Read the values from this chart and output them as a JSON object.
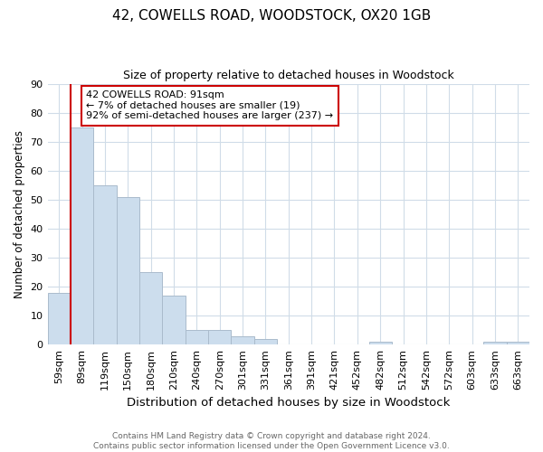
{
  "title": "42, COWELLS ROAD, WOODSTOCK, OX20 1GB",
  "subtitle": "Size of property relative to detached houses in Woodstock",
  "xlabel": "Distribution of detached houses by size in Woodstock",
  "ylabel": "Number of detached properties",
  "footer_line1": "Contains HM Land Registry data © Crown copyright and database right 2024.",
  "footer_line2": "Contains public sector information licensed under the Open Government Licence v3.0.",
  "categories": [
    "59sqm",
    "89sqm",
    "119sqm",
    "150sqm",
    "180sqm",
    "210sqm",
    "240sqm",
    "270sqm",
    "301sqm",
    "331sqm",
    "361sqm",
    "391sqm",
    "421sqm",
    "452sqm",
    "482sqm",
    "512sqm",
    "542sqm",
    "572sqm",
    "603sqm",
    "633sqm",
    "663sqm"
  ],
  "values": [
    18,
    75,
    55,
    51,
    25,
    17,
    5,
    5,
    3,
    2,
    0,
    0,
    0,
    0,
    1,
    0,
    0,
    0,
    0,
    1,
    1
  ],
  "bar_color": "#ccdded",
  "bar_edge_color": "#aabbcc",
  "property_line_x": 1,
  "property_line_color": "#cc0000",
  "annotation_text_line1": "42 COWELLS ROAD: 91sqm",
  "annotation_text_line2": "← 7% of detached houses are smaller (19)",
  "annotation_text_line3": "92% of semi-detached houses are larger (237) →",
  "annotation_box_color": "#ffffff",
  "annotation_box_edge": "#cc0000",
  "ylim": [
    0,
    90
  ],
  "yticks": [
    0,
    10,
    20,
    30,
    40,
    50,
    60,
    70,
    80,
    90
  ],
  "background_color": "#ffffff",
  "grid_color": "#d0dce8",
  "title_fontsize": 11,
  "subtitle_fontsize": 9,
  "ylabel_fontsize": 8.5,
  "xlabel_fontsize": 9.5,
  "tick_fontsize": 8,
  "footer_fontsize": 6.5,
  "annotation_fontsize": 8
}
